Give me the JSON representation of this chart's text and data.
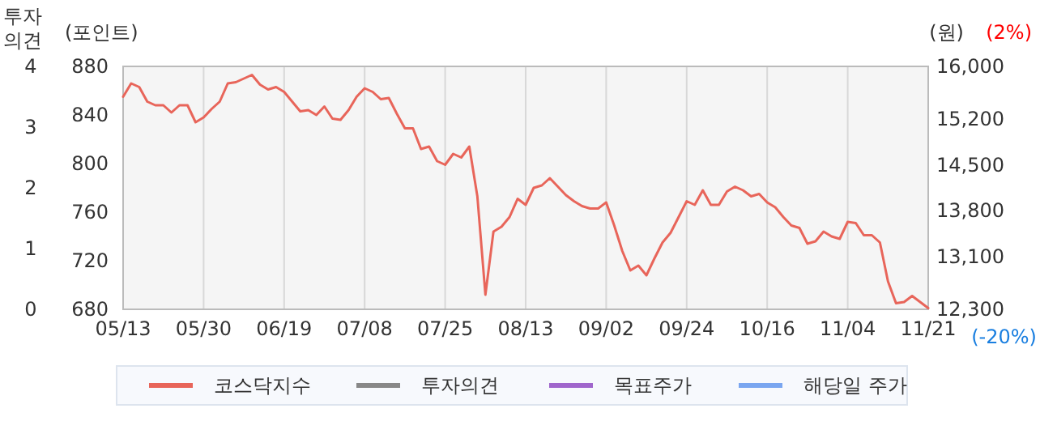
{
  "chart_data": {
    "type": "line",
    "ylabel": "(포인트)",
    "ylim": [
      680,
      880
    ],
    "yticks": [
      680,
      720,
      760,
      800,
      840,
      880
    ],
    "y2label": "(원)",
    "y2lim": [
      12300,
      16000
    ],
    "y2ticks": [
      {
        "value": 12300,
        "label": "12,300"
      },
      {
        "value": 13100,
        "label": "13,100"
      },
      {
        "value": 13800,
        "label": "13,800"
      },
      {
        "value": 14500,
        "label": "14,500"
      },
      {
        "value": 15200,
        "label": "15,200"
      },
      {
        "value": 16000,
        "label": "16,000"
      }
    ],
    "y3label": "투자의견",
    "y3lim": [
      0,
      4
    ],
    "y3ticks": [
      0,
      1,
      2,
      3,
      4
    ],
    "annotations": [
      "(2%)",
      "(-20%)"
    ],
    "categories": [
      "05/13",
      null,
      null,
      null,
      null,
      null,
      null,
      null,
      null,
      null,
      "05/30",
      null,
      null,
      null,
      null,
      null,
      null,
      null,
      null,
      null,
      "06/19",
      null,
      null,
      null,
      null,
      null,
      null,
      null,
      null,
      null,
      "07/08",
      null,
      null,
      null,
      null,
      null,
      null,
      null,
      null,
      null,
      "07/25",
      null,
      null,
      null,
      null,
      null,
      null,
      null,
      null,
      null,
      "08/13",
      null,
      null,
      null,
      null,
      null,
      null,
      null,
      null,
      null,
      "09/02",
      null,
      null,
      null,
      null,
      null,
      null,
      null,
      null,
      null,
      "09/24",
      null,
      null,
      null,
      null,
      null,
      null,
      null,
      null,
      null,
      "10/16",
      null,
      null,
      null,
      null,
      null,
      null,
      null,
      null,
      null,
      "11/04",
      null,
      null,
      null,
      null,
      null,
      null,
      null,
      null,
      null,
      "11/21"
    ],
    "series": [
      {
        "name": "코스닥지수",
        "color": "#e8655a",
        "values": [
          855,
          866,
          863,
          851,
          848,
          848,
          842,
          848,
          848,
          834,
          838,
          845,
          851,
          866,
          867,
          870,
          873,
          865,
          861,
          863,
          859,
          851,
          843,
          844,
          840,
          847,
          837,
          836,
          844,
          855,
          862,
          859,
          853,
          854,
          841,
          829,
          829,
          812,
          814,
          802,
          799,
          808,
          805,
          814,
          773,
          692,
          744,
          748,
          756,
          771,
          766,
          780,
          782,
          788,
          781,
          774,
          769,
          765,
          763,
          763,
          768,
          749,
          728,
          712,
          716,
          708,
          722,
          735,
          743,
          756,
          769,
          766,
          778,
          766,
          766,
          777,
          781,
          778,
          773,
          775,
          768,
          764,
          756,
          749,
          747,
          734,
          736,
          744,
          740,
          738,
          752,
          751,
          741,
          741,
          735,
          703,
          685,
          686,
          691,
          686,
          681
        ]
      },
      {
        "name": "투자의견",
        "color": "#888888",
        "values": [
          null,
          null,
          null,
          null,
          null,
          null,
          null,
          null,
          null,
          null,
          null,
          null,
          null,
          null,
          null,
          null,
          null,
          null,
          null,
          null,
          null,
          null,
          null,
          null,
          null,
          null,
          null,
          null,
          null,
          null,
          null,
          null,
          null,
          null,
          null,
          null,
          null,
          null,
          null,
          null,
          null,
          null,
          null,
          null,
          null,
          null,
          null,
          null,
          null,
          null,
          null,
          null,
          null,
          null,
          null,
          null,
          null,
          null,
          null,
          null,
          null,
          null,
          null,
          null,
          null,
          null,
          null,
          null,
          null,
          null,
          null,
          null,
          null,
          null,
          null,
          null,
          null,
          null,
          null,
          null,
          null,
          null,
          null,
          null,
          null,
          null,
          null,
          null,
          null,
          null,
          null,
          null,
          null,
          null,
          null,
          null,
          null,
          null,
          null,
          null,
          null
        ]
      },
      {
        "name": "목표주가",
        "color": "#a066cc",
        "values": [
          null,
          null,
          null,
          null,
          null,
          null,
          null,
          null,
          null,
          null,
          null,
          null,
          null,
          null,
          null,
          null,
          null,
          null,
          null,
          null,
          null,
          null,
          null,
          null,
          null,
          null,
          null,
          null,
          null,
          null,
          null,
          null,
          null,
          null,
          null,
          null,
          null,
          null,
          null,
          null,
          null,
          null,
          null,
          null,
          null,
          null,
          null,
          null,
          null,
          null,
          null,
          null,
          null,
          null,
          null,
          null,
          null,
          null,
          null,
          null,
          null,
          null,
          null,
          null,
          null,
          null,
          null,
          null,
          null,
          null,
          null,
          null,
          null,
          null,
          null,
          null,
          null,
          null,
          null,
          null,
          null,
          null,
          null,
          null,
          null,
          null,
          null,
          null,
          null,
          null,
          null,
          null,
          null,
          null,
          null,
          null,
          null,
          null,
          null,
          null,
          null
        ]
      },
      {
        "name": "해당일 주가",
        "color": "#7aa6f0",
        "values": [
          null,
          null,
          null,
          null,
          null,
          null,
          null,
          null,
          null,
          null,
          null,
          null,
          null,
          null,
          null,
          null,
          null,
          null,
          null,
          null,
          null,
          null,
          null,
          null,
          null,
          null,
          null,
          null,
          null,
          null,
          null,
          null,
          null,
          null,
          null,
          null,
          null,
          null,
          null,
          null,
          null,
          null,
          null,
          null,
          null,
          null,
          null,
          null,
          null,
          null,
          null,
          null,
          null,
          null,
          null,
          null,
          null,
          null,
          null,
          null,
          null,
          null,
          null,
          null,
          null,
          null,
          null,
          null,
          null,
          null,
          null,
          null,
          null,
          null,
          null,
          null,
          null,
          null,
          null,
          null,
          null,
          null,
          null,
          null,
          null,
          null,
          null,
          null,
          null,
          null,
          null,
          null,
          null,
          null,
          null,
          null,
          null,
          null,
          null,
          null,
          null
        ]
      }
    ],
    "grid": "x",
    "legend": "bottom",
    "line_style": "solid"
  }
}
